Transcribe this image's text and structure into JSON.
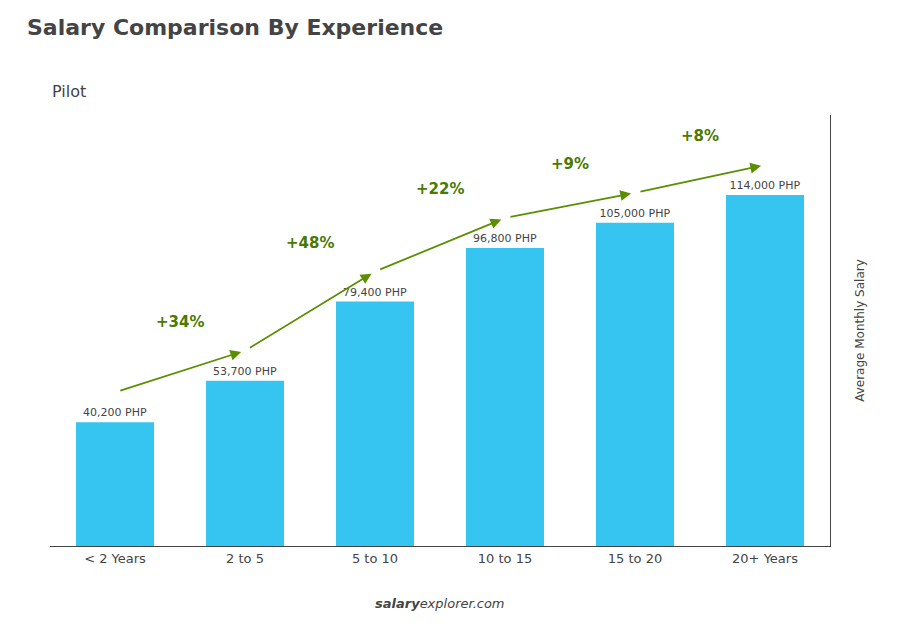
{
  "chart_data": {
    "type": "bar",
    "title": "Salary Comparison By Experience",
    "subtitle": "Pilot",
    "categories": [
      "< 2 Years",
      "2 to 5",
      "5 to 10",
      "10 to 15",
      "15 to 20",
      "20+ Years"
    ],
    "values": [
      40200,
      53700,
      79400,
      96800,
      105000,
      114000
    ],
    "value_labels": [
      "40,200 PHP",
      "53,700 PHP",
      "79,400 PHP",
      "96,800 PHP",
      "105,000 PHP",
      "114,000 PHP"
    ],
    "data_labels": true,
    "annotations": [
      "+34%",
      "+48%",
      "+22%",
      "+9%",
      "+8%"
    ],
    "ylabel": "Average Monthly Salary",
    "footer": [
      "salary",
      "explorer.com"
    ],
    "color": "#35C5F0",
    "ylim": [
      0,
      140000
    ],
    "tick_labels": "x",
    "grid": false
  }
}
